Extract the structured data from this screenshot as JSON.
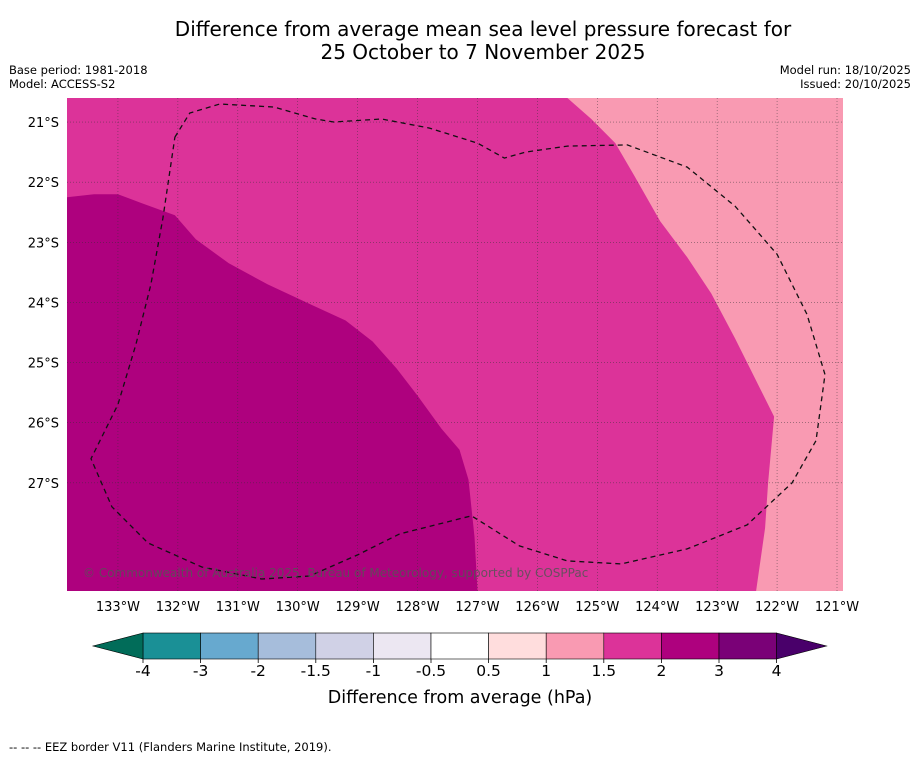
{
  "title": {
    "line1": "Difference from average mean sea level pressure forecast for",
    "line2": "25 October to 7 November 2025"
  },
  "info_left": {
    "base_period": "Base period: 1981-2018",
    "model": "Model: ACCESS-S2"
  },
  "info_right": {
    "model_run": "Model run: 18/10/2025",
    "issued": "Issued: 20/10/2025"
  },
  "map": {
    "lon_range_deg": [
      -133.85,
      -120.9
    ],
    "lat_range_deg": [
      -20.6,
      -28.8
    ],
    "lon_labels": [
      {
        "lon": -133,
        "text": "133°W"
      },
      {
        "lon": -132,
        "text": "132°W"
      },
      {
        "lon": -131,
        "text": "131°W"
      },
      {
        "lon": -130,
        "text": "130°W"
      },
      {
        "lon": -129,
        "text": "129°W"
      },
      {
        "lon": -128,
        "text": "128°W"
      },
      {
        "lon": -127,
        "text": "127°W"
      },
      {
        "lon": -126,
        "text": "126°W"
      },
      {
        "lon": -125,
        "text": "125°W"
      },
      {
        "lon": -124,
        "text": "124°W"
      },
      {
        "lon": -123,
        "text": "123°W"
      },
      {
        "lon": -122,
        "text": "122°W"
      },
      {
        "lon": -121,
        "text": "121°W"
      }
    ],
    "lat_labels": [
      {
        "lat": -21,
        "text": "21°S"
      },
      {
        "lat": -22,
        "text": "22°S"
      },
      {
        "lat": -23,
        "text": "23°S"
      },
      {
        "lat": -24,
        "text": "24°S"
      },
      {
        "lat": -25,
        "text": "25°S"
      },
      {
        "lat": -26,
        "text": "26°S"
      },
      {
        "lat": -27,
        "text": "27°S"
      }
    ],
    "regions": [
      {
        "category": "1 to 1.5 hPa",
        "color": "#f99ab2",
        "boundary_lonlat": [
          [
            -133.85,
            -20.6
          ],
          [
            -120.9,
            -20.6
          ],
          [
            -120.9,
            -28.8
          ],
          [
            -133.85,
            -28.8
          ]
        ]
      },
      {
        "category": "1.5 to 2 hPa",
        "color": "#dc3399",
        "boundary_lonlat": [
          [
            -133.85,
            -20.6
          ],
          [
            -125.5,
            -20.6
          ],
          [
            -125.1,
            -20.95
          ],
          [
            -124.7,
            -21.35
          ],
          [
            -124.35,
            -21.95
          ],
          [
            -123.95,
            -22.65
          ],
          [
            -123.5,
            -23.25
          ],
          [
            -123.1,
            -23.85
          ],
          [
            -122.7,
            -24.6
          ],
          [
            -122.3,
            -25.4
          ],
          [
            -122.05,
            -25.9
          ],
          [
            -122.15,
            -27.0
          ],
          [
            -122.2,
            -27.75
          ],
          [
            -122.35,
            -28.8
          ],
          [
            -133.85,
            -28.8
          ]
        ]
      },
      {
        "category": "2 to 3 hPa",
        "color": "#ae017e",
        "boundary_lonlat": [
          [
            -133.85,
            -22.25
          ],
          [
            -133.4,
            -22.2
          ],
          [
            -133.0,
            -22.2
          ],
          [
            -132.6,
            -22.35
          ],
          [
            -132.05,
            -22.55
          ],
          [
            -131.7,
            -22.95
          ],
          [
            -131.15,
            -23.35
          ],
          [
            -130.5,
            -23.7
          ],
          [
            -129.75,
            -24.05
          ],
          [
            -129.2,
            -24.3
          ],
          [
            -128.75,
            -24.65
          ],
          [
            -128.35,
            -25.1
          ],
          [
            -128.0,
            -25.55
          ],
          [
            -127.6,
            -26.1
          ],
          [
            -127.3,
            -26.45
          ],
          [
            -127.15,
            -26.95
          ],
          [
            -127.05,
            -27.9
          ],
          [
            -127.0,
            -28.8
          ],
          [
            -133.85,
            -28.8
          ]
        ]
      }
    ],
    "eez_border_lonlat": [
      [
        -132.05,
        -21.25
      ],
      [
        -131.8,
        -20.85
      ],
      [
        -131.3,
        -20.7
      ],
      [
        -130.4,
        -20.75
      ],
      [
        -129.7,
        -20.95
      ],
      [
        -129.4,
        -21.0
      ],
      [
        -128.6,
        -20.95
      ],
      [
        -127.8,
        -21.1
      ],
      [
        -127.0,
        -21.35
      ],
      [
        -126.55,
        -21.6
      ],
      [
        -126.2,
        -21.5
      ],
      [
        -125.5,
        -21.4
      ],
      [
        -124.5,
        -21.38
      ],
      [
        -123.5,
        -21.75
      ],
      [
        -122.7,
        -22.4
      ],
      [
        -122.0,
        -23.2
      ],
      [
        -121.5,
        -24.2
      ],
      [
        -121.2,
        -25.2
      ],
      [
        -121.35,
        -26.3
      ],
      [
        -121.75,
        -27.0
      ],
      [
        -122.5,
        -27.7
      ],
      [
        -123.5,
        -28.1
      ],
      [
        -124.6,
        -28.35
      ],
      [
        -125.5,
        -28.3
      ],
      [
        -126.3,
        -28.05
      ],
      [
        -127.1,
        -27.55
      ],
      [
        -127.7,
        -27.7
      ],
      [
        -128.3,
        -27.85
      ],
      [
        -129.0,
        -28.2
      ],
      [
        -129.8,
        -28.55
      ],
      [
        -130.6,
        -28.6
      ],
      [
        -131.6,
        -28.4
      ],
      [
        -132.5,
        -28.0
      ],
      [
        -133.1,
        -27.4
      ],
      [
        -133.45,
        -26.6
      ],
      [
        -133.0,
        -25.7
      ],
      [
        -132.7,
        -24.7
      ],
      [
        -132.45,
        -23.7
      ],
      [
        -132.25,
        -22.6
      ],
      [
        -132.05,
        -21.25
      ]
    ],
    "copyright": "© Commonwealth of Australia 2025, Bureau of Meteorology, supported by COSPPac"
  },
  "colorbar": {
    "ticks": [
      "-4",
      "-3",
      "-2",
      "-1.5",
      "-1",
      "-0.5",
      "0.5",
      "1",
      "1.5",
      "2",
      "3",
      "4"
    ],
    "colors": [
      "#1a9096",
      "#67a9cf",
      "#a6bddb",
      "#d0d1e6",
      "#ece7f2",
      "#ffffff",
      "#ffdddd",
      "#f99ab2",
      "#dc3399",
      "#ae017e",
      "#7a0177"
    ],
    "under_color": "#016c59",
    "over_color": "#49006a",
    "label": "Difference from average (hPa)"
  },
  "footnote": "--  --  -- EEZ border V11 (Flanders Marine Institute, 2019)."
}
